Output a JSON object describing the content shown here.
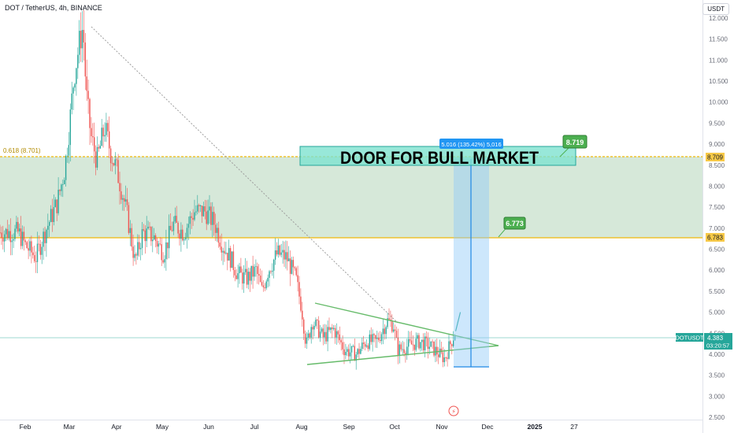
{
  "header": {
    "symbol_line": "DOT / TetherUS, 4h, BINANCE",
    "currency_button": "USDT"
  },
  "colors": {
    "up": "#26a69a",
    "down": "#ef5350",
    "zone_fill": "#c8e0cc",
    "zone_line": "#f0b90b",
    "wedge": "#4caf50",
    "measure": "#2962ff",
    "measure_fill": "#bbdefb",
    "label_green": "#4caf50",
    "axis_text": "#6a6d78"
  },
  "chart_data": {
    "type": "candlestick",
    "y_ticks": [
      "12.000",
      "11.500",
      "11.000",
      "10.500",
      "10.000",
      "9.500",
      "9.000",
      "8.500",
      "8.000",
      "7.500",
      "7.000",
      "6.500",
      "6.000",
      "5.500",
      "5.000",
      "4.500",
      "4.000",
      "3.500",
      "3.000",
      "2.500"
    ],
    "ylim": [
      2.5,
      12.0
    ],
    "x_ticks": [
      {
        "label": "Feb",
        "bold": false
      },
      {
        "label": "Mar",
        "bold": false
      },
      {
        "label": "Apr",
        "bold": false
      },
      {
        "label": "May",
        "bold": false
      },
      {
        "label": "Jun",
        "bold": false
      },
      {
        "label": "Jul",
        "bold": false
      },
      {
        "label": "Aug",
        "bold": false
      },
      {
        "label": "Sep",
        "bold": false
      },
      {
        "label": "Oct",
        "bold": false
      },
      {
        "label": "Nov",
        "bold": false
      },
      {
        "label": "Dec",
        "bold": false
      },
      {
        "label": "2025",
        "bold": true
      },
      {
        "label": "27",
        "bold": false
      }
    ],
    "price_path": [
      [
        "Jan 25",
        6.9
      ],
      [
        "Feb 1",
        6.6
      ],
      [
        "Feb 8",
        6.3
      ],
      [
        "Feb 15",
        7.0
      ],
      [
        "Feb 22",
        7.6
      ],
      [
        "Feb 27",
        8.4
      ],
      [
        "Mar 1",
        9.4
      ],
      [
        "Mar 4",
        10.6
      ],
      [
        "Mar 8",
        11.5
      ],
      [
        "Mar 10",
        11.8
      ],
      [
        "Mar 12",
        10.2
      ],
      [
        "Mar 15",
        9.2
      ],
      [
        "Mar 19",
        8.6
      ],
      [
        "Mar 24",
        9.4
      ],
      [
        "Mar 28",
        8.8
      ],
      [
        "Apr 1",
        8.4
      ],
      [
        "Apr 5",
        7.8
      ],
      [
        "Apr 8",
        7.3
      ],
      [
        "Apr 13",
        6.2
      ],
      [
        "Apr 18",
        6.9
      ],
      [
        "Apr 25",
        6.8
      ],
      [
        "May 2",
        6.4
      ],
      [
        "May 8",
        7.1
      ],
      [
        "May 15",
        6.9
      ],
      [
        "May 22",
        7.4
      ],
      [
        "May 29",
        7.4
      ],
      [
        "Jun 5",
        7.1
      ],
      [
        "Jun 10",
        6.6
      ],
      [
        "Jun 15",
        6.3
      ],
      [
        "Jun 20",
        5.9
      ],
      [
        "Jun 26",
        5.8
      ],
      [
        "Jul 2",
        6.0
      ],
      [
        "Jul 6",
        5.5
      ],
      [
        "Jul 10",
        6.0
      ],
      [
        "Jul 16",
        6.4
      ],
      [
        "Jul 22",
        6.3
      ],
      [
        "Jul 28",
        5.8
      ],
      [
        "Aug 1",
        5.1
      ],
      [
        "Aug 4",
        4.2
      ],
      [
        "Aug 8",
        4.8
      ],
      [
        "Aug 15",
        4.4
      ],
      [
        "Aug 22",
        4.6
      ],
      [
        "Aug 29",
        4.1
      ],
      [
        "Sep 6",
        4.0
      ],
      [
        "Sep 12",
        4.3
      ],
      [
        "Sep 19",
        4.3
      ],
      [
        "Sep 26",
        4.8
      ],
      [
        "Sep 30",
        4.7
      ],
      [
        "Oct 3",
        4.1
      ],
      [
        "Oct 10",
        4.2
      ],
      [
        "Oct 17",
        4.3
      ],
      [
        "Oct 24",
        4.2
      ],
      [
        "Oct 30",
        4.0
      ],
      [
        "Nov 3",
        3.9
      ],
      [
        "Nov 6",
        4.2
      ],
      [
        "Nov 10",
        4.55
      ]
    ],
    "last_price": "4.383",
    "countdown": "03:20:57",
    "ticker": "DOTUSDT",
    "zone_upper": "8.709",
    "zone_lower": "6.783",
    "fib_label": "0.618 (8.701)",
    "target_1": "6.773",
    "target_2": "8.719",
    "measure_label": "5.016 (135.42%) 5,016",
    "headline": "DOOR FOR BULL MARKET"
  }
}
